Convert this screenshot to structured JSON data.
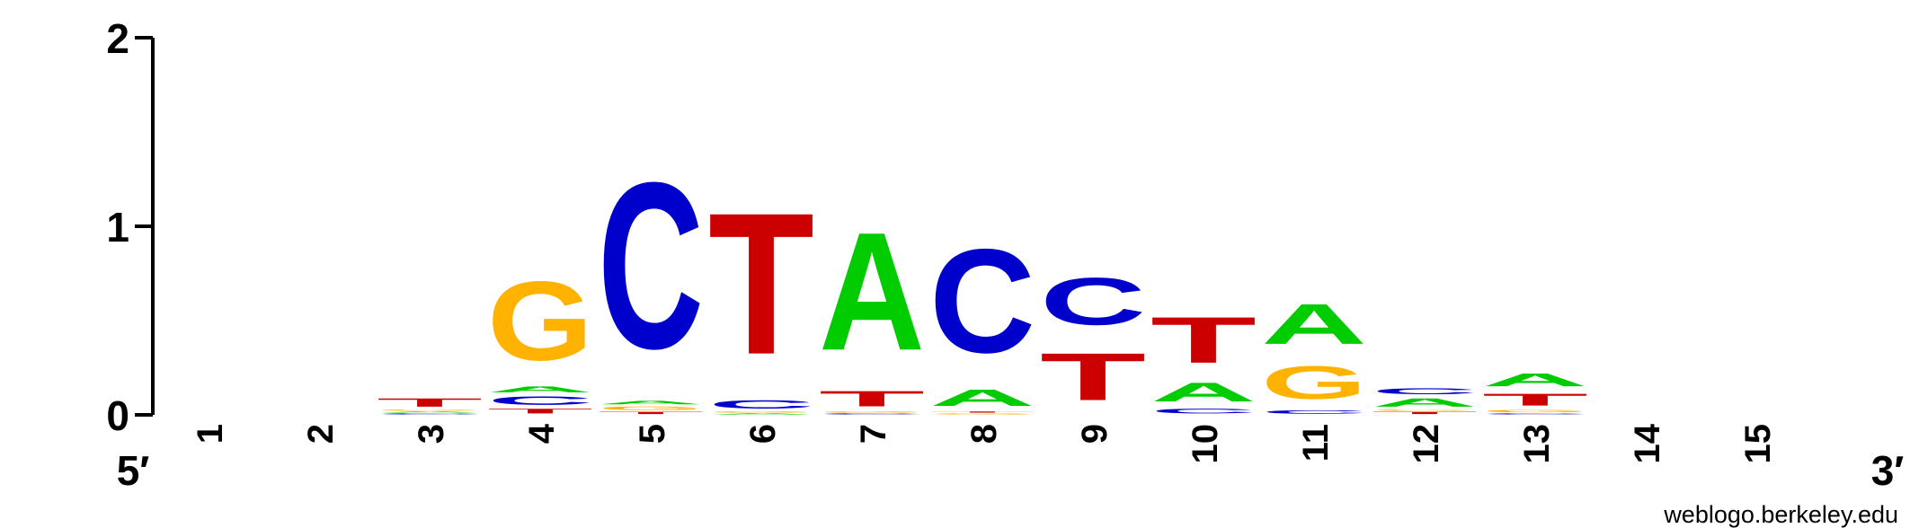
{
  "chart_data": {
    "type": "sequence-logo",
    "ylim": [
      0,
      2
    ],
    "y_ticks": [
      "0",
      "1",
      "2"
    ],
    "x_ticks": [
      "1",
      "2",
      "3",
      "4",
      "5",
      "6",
      "7",
      "8",
      "9",
      "10",
      "11",
      "12",
      "13",
      "14",
      "15"
    ],
    "end_labels": {
      "left": "5′",
      "right": "3′"
    },
    "colors": {
      "A": "#00cc00",
      "C": "#0000cc",
      "G": "#ffb300",
      "T": "#cc0000"
    },
    "positions": [
      {
        "position": "1",
        "letters": []
      },
      {
        "position": "2",
        "letters": []
      },
      {
        "position": "3",
        "letters": [
          {
            "base": "C",
            "height": 0.01
          },
          {
            "base": "A",
            "height": 0.01
          },
          {
            "base": "G",
            "height": 0.01
          },
          {
            "base": "T",
            "height": 0.07
          }
        ]
      },
      {
        "position": "4",
        "letters": [
          {
            "base": "T",
            "height": 0.04
          },
          {
            "base": "C",
            "height": 0.07
          },
          {
            "base": "A",
            "height": 0.05
          },
          {
            "base": "G",
            "height": 0.67
          }
        ]
      },
      {
        "position": "5",
        "letters": [
          {
            "base": "T",
            "height": 0.02
          },
          {
            "base": "G",
            "height": 0.03
          },
          {
            "base": "A",
            "height": 0.03
          },
          {
            "base": "C",
            "height": 1.41
          }
        ]
      },
      {
        "position": "6",
        "letters": [
          {
            "base": "A",
            "height": 0.01
          },
          {
            "base": "G",
            "height": 0.01
          },
          {
            "base": "C",
            "height": 0.07
          },
          {
            "base": "T",
            "height": 1.2
          }
        ]
      },
      {
        "position": "7",
        "letters": [
          {
            "base": "C",
            "height": 0.01
          },
          {
            "base": "G",
            "height": 0.01
          },
          {
            "base": "T",
            "height": 0.13
          },
          {
            "base": "A",
            "height": 1.0
          }
        ]
      },
      {
        "position": "8",
        "letters": [
          {
            "base": "G",
            "height": 0.01
          },
          {
            "base": "T",
            "height": 0.01
          },
          {
            "base": "A",
            "height": 0.14
          },
          {
            "base": "C",
            "height": 0.88
          }
        ]
      },
      {
        "position": "9",
        "letters": [
          {
            "base": "T",
            "height": 0.4
          },
          {
            "base": "C",
            "height": 0.4
          }
        ]
      },
      {
        "position": "10",
        "letters": [
          {
            "base": "C",
            "height": 0.04
          },
          {
            "base": "A",
            "height": 0.16
          },
          {
            "base": "T",
            "height": 0.39
          }
        ]
      },
      {
        "position": "11",
        "letters": [
          {
            "base": "C",
            "height": 0.03
          },
          {
            "base": "G",
            "height": 0.28
          },
          {
            "base": "A",
            "height": 0.34
          }
        ]
      },
      {
        "position": "12",
        "letters": [
          {
            "base": "T",
            "height": 0.02
          },
          {
            "base": "G",
            "height": 0.01
          },
          {
            "base": "A",
            "height": 0.07
          },
          {
            "base": "C",
            "height": 0.05
          }
        ]
      },
      {
        "position": "13",
        "letters": [
          {
            "base": "C",
            "height": 0.01
          },
          {
            "base": "G",
            "height": 0.02
          },
          {
            "base": "T",
            "height": 0.1
          },
          {
            "base": "A",
            "height": 0.11
          }
        ]
      },
      {
        "position": "14",
        "letters": []
      },
      {
        "position": "15",
        "letters": []
      }
    ]
  },
  "credit": "weblogo.berkeley.edu"
}
